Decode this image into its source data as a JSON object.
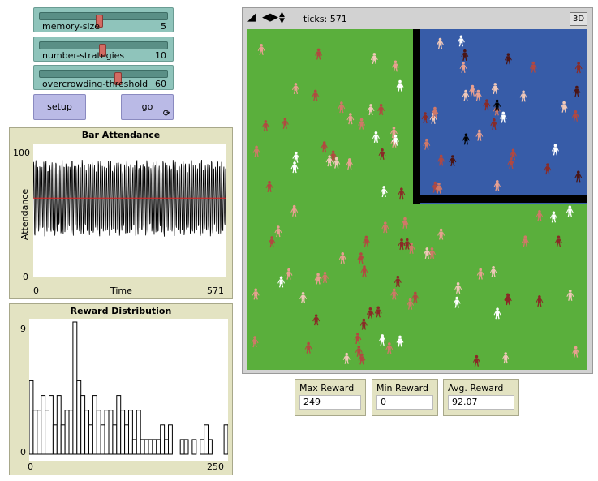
{
  "sliders": [
    {
      "label": "memory-size",
      "value": "5",
      "fraction": 0.5
    },
    {
      "label": "number-strategies",
      "value": "10",
      "fraction": 0.53
    },
    {
      "label": "overcrowding-threshold",
      "value": "60",
      "fraction": 0.6
    }
  ],
  "buttons": {
    "setup": "setup",
    "go": "go",
    "forever_glyph": "⟳"
  },
  "bar_attendance": {
    "title": "Bar Attendance",
    "ylabel": "Attendance",
    "xlabel": "Time",
    "ymax_label": "100",
    "ymin_label": "0",
    "xmin_label": "0",
    "xmax_label": "571"
  },
  "reward_distribution": {
    "title": "Reward Distribution",
    "ymax_label": "9",
    "ymin_label": "0",
    "xmin_label": "0",
    "xmax_label": "250"
  },
  "view": {
    "ticks": "ticks: 571",
    "btn3d": "3D",
    "colors": {
      "grass": "#5aaf3c",
      "bar": "#375ca8",
      "wall": "#000000"
    }
  },
  "monitors": [
    {
      "label": "Max Reward",
      "value": "249"
    },
    {
      "label": "Min Reward",
      "value": "0"
    },
    {
      "label": "Avg. Reward",
      "value": "92.07"
    }
  ],
  "chart_data": [
    {
      "type": "line",
      "title": "Bar Attendance",
      "xlabel": "Time",
      "ylabel": "Attendance",
      "xlim": [
        0,
        571
      ],
      "ylim": [
        0,
        100
      ],
      "series": [
        {
          "oscillation_center": 60,
          "oscillation_amplitude": 28,
          "oscillation_period": 6
        },
        {
          "constant": 60,
          "color": "#e02020"
        }
      ]
    },
    {
      "type": "bar",
      "title": "Reward Distribution",
      "xlim": [
        0,
        250
      ],
      "ylim": [
        0,
        9
      ],
      "bin_width": 5,
      "values": [
        5,
        3,
        3,
        4,
        3,
        4,
        2,
        4,
        2,
        3,
        3,
        9,
        5,
        4,
        3,
        2,
        4,
        3,
        2,
        3,
        3,
        2,
        4,
        3,
        2,
        3,
        1,
        3,
        1,
        1,
        1,
        1,
        1,
        2,
        1,
        2,
        0,
        0,
        1,
        1,
        0,
        1,
        0,
        1,
        2,
        1,
        0,
        0,
        0,
        2,
        2
      ]
    }
  ]
}
